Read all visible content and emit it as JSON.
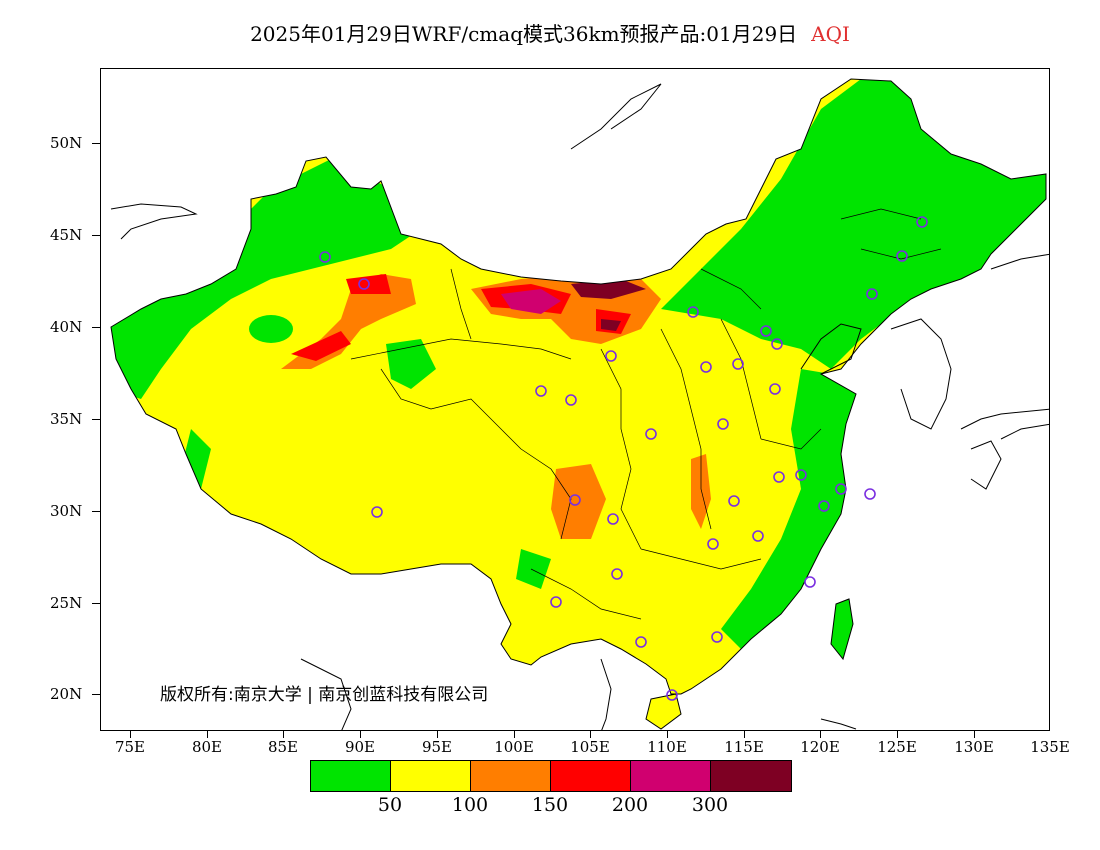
{
  "title": {
    "main": "2025年01月29日WRF/cmaq模式36km预报产品:01月29日",
    "product": "AQI"
  },
  "map": {
    "lat_labels": [
      "50N",
      "45N",
      "40N",
      "35N",
      "30N",
      "25N",
      "20N"
    ],
    "lon_labels": [
      "75E",
      "80E",
      "85E",
      "90E",
      "95E",
      "100E",
      "105E",
      "110E",
      "115E",
      "120E",
      "125E",
      "130E",
      "135E"
    ],
    "copyright": "版权所有:南京大学 | 南京创蓝科技有限公司",
    "colors": {
      "ocean": "#ffffff",
      "land_outside": "#ffffff",
      "border": "#000000",
      "station_marker": "#7a2fe0"
    }
  },
  "legend": {
    "colors": [
      "#00e400",
      "#ffff00",
      "#ff7e00",
      "#ff0000",
      "#d0006f",
      "#7e0023"
    ],
    "labels": [
      "50",
      "100",
      "150",
      "200",
      "300"
    ]
  }
}
